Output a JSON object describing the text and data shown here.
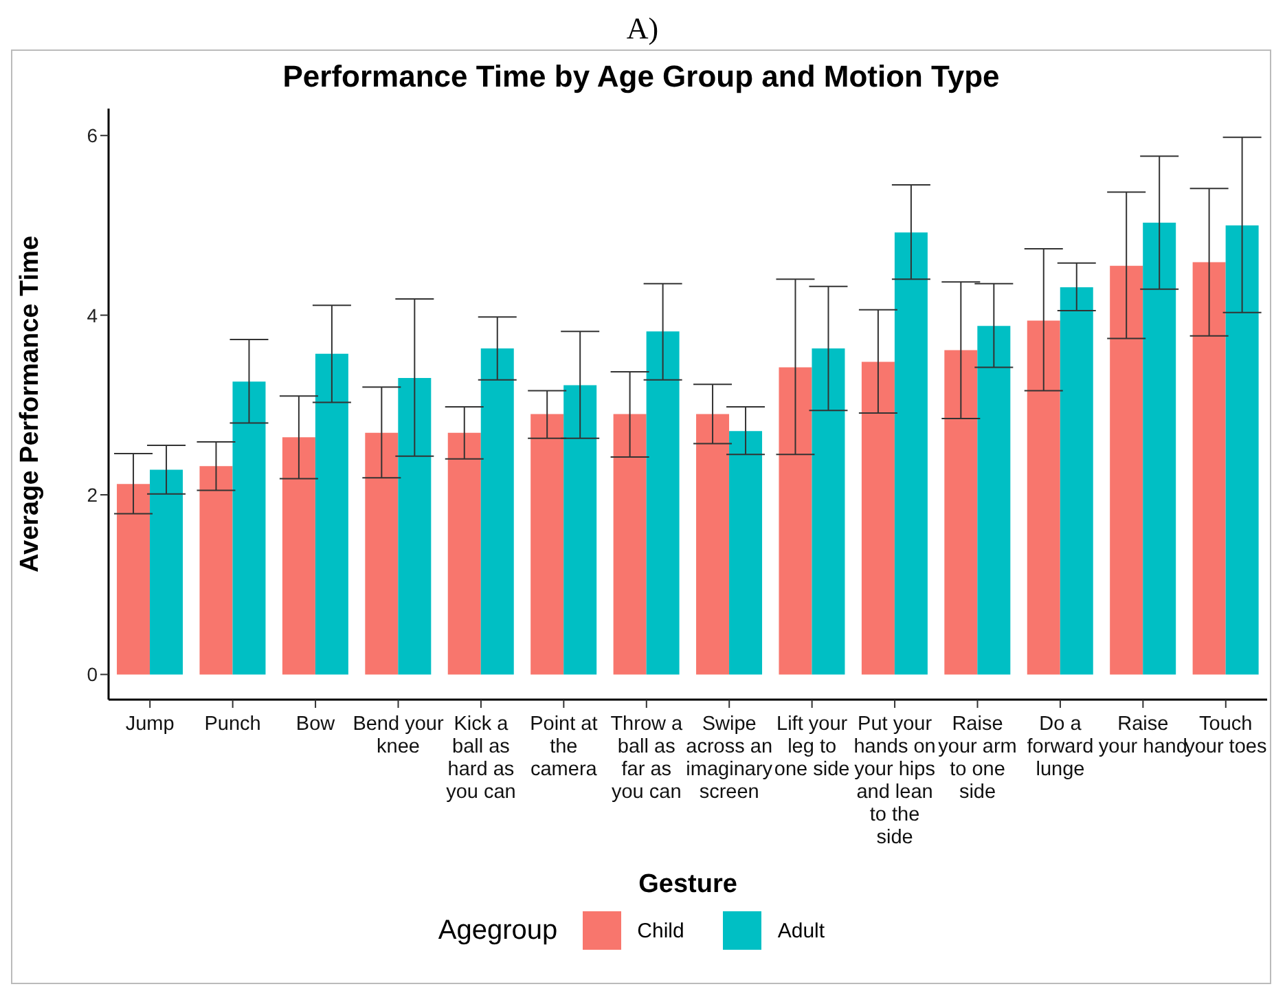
{
  "chart_data": {
    "type": "bar",
    "title": "Performance Time by Age Group and Motion Type",
    "xlabel": "Gesture",
    "ylabel": "Average Performance Time",
    "legend_title": "Agegroup",
    "annotations": [
      "A)"
    ],
    "categories": [
      "Jump",
      "Punch",
      "Bow",
      "Bend your knee",
      "Kick a ball as hard as you can",
      "Point at the camera",
      "Throw a ball as far as you can",
      "Swipe across an imaginary screen",
      "Lift your leg to one side",
      "Put your hands on your hips and lean to the side",
      "Raise your arm to one side",
      "Do a forward lunge",
      "Raise your hand",
      "Touch your toes"
    ],
    "series": [
      {
        "name": "Child",
        "color": "#f8766d",
        "values": [
          2.12,
          2.32,
          2.64,
          2.69,
          2.69,
          2.9,
          2.9,
          2.9,
          3.42,
          3.48,
          3.61,
          3.94,
          4.55,
          4.59
        ],
        "errors": [
          [
            1.79,
            2.46
          ],
          [
            2.05,
            2.59
          ],
          [
            2.18,
            3.1
          ],
          [
            2.19,
            3.2
          ],
          [
            2.4,
            2.98
          ],
          [
            2.63,
            3.16
          ],
          [
            2.42,
            3.37
          ],
          [
            2.57,
            3.23
          ],
          [
            2.45,
            4.4
          ],
          [
            2.91,
            4.06
          ],
          [
            2.85,
            4.37
          ],
          [
            3.16,
            4.74
          ],
          [
            3.74,
            5.37
          ],
          [
            3.77,
            5.41
          ]
        ]
      },
      {
        "name": "Adult",
        "color": "#00bfc4",
        "values": [
          2.28,
          3.26,
          3.57,
          3.3,
          3.63,
          3.22,
          3.82,
          2.71,
          3.63,
          4.92,
          3.88,
          4.31,
          5.03,
          5.0
        ],
        "errors": [
          [
            2.01,
            2.55
          ],
          [
            2.8,
            3.73
          ],
          [
            3.03,
            4.11
          ],
          [
            2.43,
            4.18
          ],
          [
            3.28,
            3.98
          ],
          [
            2.63,
            3.82
          ],
          [
            3.28,
            4.35
          ],
          [
            2.45,
            2.98
          ],
          [
            2.94,
            4.32
          ],
          [
            4.4,
            5.45
          ],
          [
            3.42,
            4.35
          ],
          [
            4.05,
            4.58
          ],
          [
            4.29,
            5.77
          ],
          [
            4.03,
            5.98
          ]
        ]
      }
    ],
    "ylim": [
      -0.28,
      6.3
    ],
    "yticks": [
      0,
      2,
      4,
      6
    ],
    "grid": false,
    "legend": "bottom"
  }
}
